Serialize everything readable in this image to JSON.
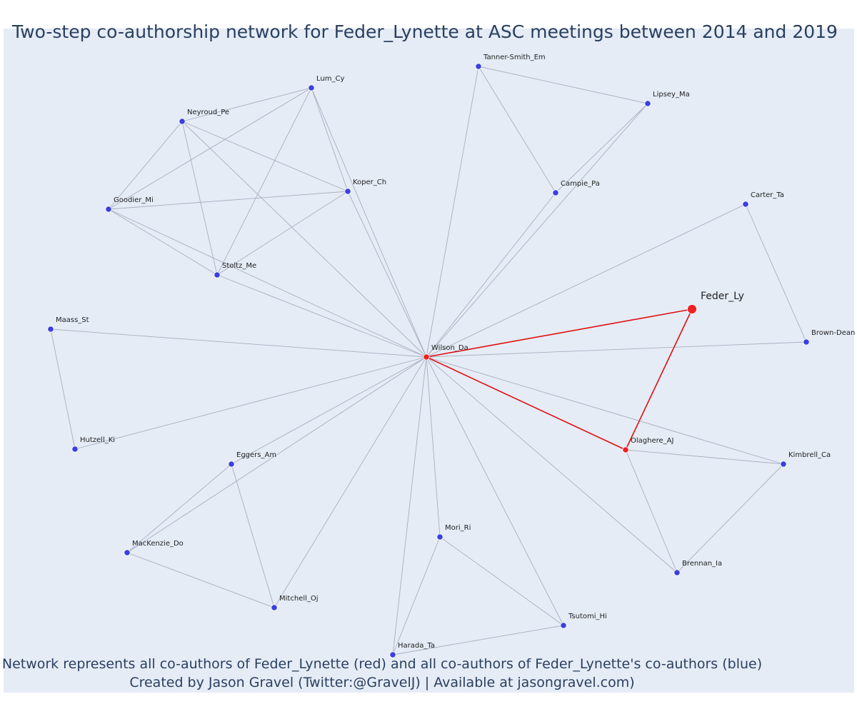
{
  "title": "Two-step co-authorship network for Feder_Lynette at ASC meetings between 2014 and 2019",
  "footer": {
    "line1": "Network represents all co-authors of Feder_Lynette (red) and all co-authors of Feder_Lynette's co-authors (blue)",
    "line2": "Created by Jason Gravel (Twitter:@GravelJ) | Available at jasongravel.com)"
  },
  "colors": {
    "background": "#e5ecf6",
    "first_step_node": "#ee2222",
    "second_step_node": "#3b3fe0",
    "first_step_edge": "#e01010",
    "second_step_edge": "#a9aebf",
    "text": "#2a3f5f"
  },
  "nodes": [
    {
      "id": "Feder_Ly",
      "label": "Feder_Ly",
      "group": "focal"
    },
    {
      "id": "Wilson_Da",
      "label": "Wilson_Da",
      "group": "coauthor"
    },
    {
      "id": "Olaghere_AJ",
      "label": "Olaghere_AJ",
      "group": "coauthor"
    },
    {
      "id": "Lum_Cy",
      "label": "Lum_Cy",
      "group": "second"
    },
    {
      "id": "Neyroud_Pe",
      "label": "Neyroud_Pe",
      "group": "second"
    },
    {
      "id": "Koper_Ch",
      "label": "Koper_Ch",
      "group": "second"
    },
    {
      "id": "Goodier_Mi",
      "label": "Goodier_Mi",
      "group": "second"
    },
    {
      "id": "Stoltz_Me",
      "label": "Stoltz_Me",
      "group": "second"
    },
    {
      "id": "Tanner-Smith_Em",
      "label": "Tanner-Smith_Em",
      "group": "second"
    },
    {
      "id": "Lipsey_Ma",
      "label": "Lipsey_Ma",
      "group": "second"
    },
    {
      "id": "Campie_Pa",
      "label": "Campie_Pa",
      "group": "second"
    },
    {
      "id": "Carter_Ta",
      "label": "Carter_Ta",
      "group": "second"
    },
    {
      "id": "Brown-Dean",
      "label": "Brown-Dean",
      "group": "second"
    },
    {
      "id": "Maass_St",
      "label": "Maass_St",
      "group": "second"
    },
    {
      "id": "Hutzell_Ki",
      "label": "Hutzell_Ki",
      "group": "second"
    },
    {
      "id": "Eggers_Am",
      "label": "Eggers_Am",
      "group": "second"
    },
    {
      "id": "MacKenzie_Do",
      "label": "MacKenzie_Do",
      "group": "second"
    },
    {
      "id": "Mitchell_Oj",
      "label": "Mitchell_Oj",
      "group": "second"
    },
    {
      "id": "Mori_Ri",
      "label": "Mori_Ri",
      "group": "second"
    },
    {
      "id": "Harada_Ta",
      "label": "Harada_Ta",
      "group": "second"
    },
    {
      "id": "Tsutomi_Hi",
      "label": "Tsutomi_Hi",
      "group": "second"
    },
    {
      "id": "Kimbrell_Ca",
      "label": "Kimbrell_Ca",
      "group": "second"
    },
    {
      "id": "Brennan_Ia",
      "label": "Brennan_Ia",
      "group": "second"
    }
  ],
  "edges": [
    {
      "source": "Feder_Ly",
      "target": "Wilson_Da",
      "type": "first"
    },
    {
      "source": "Feder_Ly",
      "target": "Olaghere_AJ",
      "type": "first"
    },
    {
      "source": "Wilson_Da",
      "target": "Olaghere_AJ",
      "type": "first"
    },
    {
      "source": "Wilson_Da",
      "target": "Lum_Cy",
      "type": "second"
    },
    {
      "source": "Wilson_Da",
      "target": "Neyroud_Pe",
      "type": "second"
    },
    {
      "source": "Wilson_Da",
      "target": "Koper_Ch",
      "type": "second"
    },
    {
      "source": "Wilson_Da",
      "target": "Goodier_Mi",
      "type": "second"
    },
    {
      "source": "Wilson_Da",
      "target": "Stoltz_Me",
      "type": "second"
    },
    {
      "source": "Wilson_Da",
      "target": "Tanner-Smith_Em",
      "type": "second"
    },
    {
      "source": "Wilson_Da",
      "target": "Lipsey_Ma",
      "type": "second"
    },
    {
      "source": "Wilson_Da",
      "target": "Campie_Pa",
      "type": "second"
    },
    {
      "source": "Wilson_Da",
      "target": "Carter_Ta",
      "type": "second"
    },
    {
      "source": "Wilson_Da",
      "target": "Brown-Dean",
      "type": "second"
    },
    {
      "source": "Wilson_Da",
      "target": "Maass_St",
      "type": "second"
    },
    {
      "source": "Wilson_Da",
      "target": "Hutzell_Ki",
      "type": "second"
    },
    {
      "source": "Wilson_Da",
      "target": "Eggers_Am",
      "type": "second"
    },
    {
      "source": "Wilson_Da",
      "target": "MacKenzie_Do",
      "type": "second"
    },
    {
      "source": "Wilson_Da",
      "target": "Mitchell_Oj",
      "type": "second"
    },
    {
      "source": "Wilson_Da",
      "target": "Mori_Ri",
      "type": "second"
    },
    {
      "source": "Wilson_Da",
      "target": "Harada_Ta",
      "type": "second"
    },
    {
      "source": "Wilson_Da",
      "target": "Tsutomi_Hi",
      "type": "second"
    },
    {
      "source": "Wilson_Da",
      "target": "Kimbrell_Ca",
      "type": "second"
    },
    {
      "source": "Wilson_Da",
      "target": "Brennan_Ia",
      "type": "second"
    },
    {
      "source": "Lum_Cy",
      "target": "Neyroud_Pe",
      "type": "second"
    },
    {
      "source": "Lum_Cy",
      "target": "Goodier_Mi",
      "type": "second"
    },
    {
      "source": "Lum_Cy",
      "target": "Stoltz_Me",
      "type": "second"
    },
    {
      "source": "Lum_Cy",
      "target": "Koper_Ch",
      "type": "second"
    },
    {
      "source": "Neyroud_Pe",
      "target": "Goodier_Mi",
      "type": "second"
    },
    {
      "source": "Neyroud_Pe",
      "target": "Koper_Ch",
      "type": "second"
    },
    {
      "source": "Neyroud_Pe",
      "target": "Stoltz_Me",
      "type": "second"
    },
    {
      "source": "Goodier_Mi",
      "target": "Koper_Ch",
      "type": "second"
    },
    {
      "source": "Goodier_Mi",
      "target": "Stoltz_Me",
      "type": "second"
    },
    {
      "source": "Stoltz_Me",
      "target": "Koper_Ch",
      "type": "second"
    },
    {
      "source": "Tanner-Smith_Em",
      "target": "Lipsey_Ma",
      "type": "second"
    },
    {
      "source": "Tanner-Smith_Em",
      "target": "Campie_Pa",
      "type": "second"
    },
    {
      "source": "Lipsey_Ma",
      "target": "Campie_Pa",
      "type": "second"
    },
    {
      "source": "Carter_Ta",
      "target": "Brown-Dean",
      "type": "second"
    },
    {
      "source": "Maass_St",
      "target": "Hutzell_Ki",
      "type": "second"
    },
    {
      "source": "Eggers_Am",
      "target": "MacKenzie_Do",
      "type": "second"
    },
    {
      "source": "Eggers_Am",
      "target": "Mitchell_Oj",
      "type": "second"
    },
    {
      "source": "MacKenzie_Do",
      "target": "Mitchell_Oj",
      "type": "second"
    },
    {
      "source": "Mori_Ri",
      "target": "Harada_Ta",
      "type": "second"
    },
    {
      "source": "Mori_Ri",
      "target": "Tsutomi_Hi",
      "type": "second"
    },
    {
      "source": "Harada_Ta",
      "target": "Tsutomi_Hi",
      "type": "second"
    },
    {
      "source": "Olaghere_AJ",
      "target": "Kimbrell_Ca",
      "type": "second"
    },
    {
      "source": "Olaghere_AJ",
      "target": "Brennan_Ia",
      "type": "second"
    },
    {
      "source": "Kimbrell_Ca",
      "target": "Brennan_Ia",
      "type": "second"
    }
  ]
}
